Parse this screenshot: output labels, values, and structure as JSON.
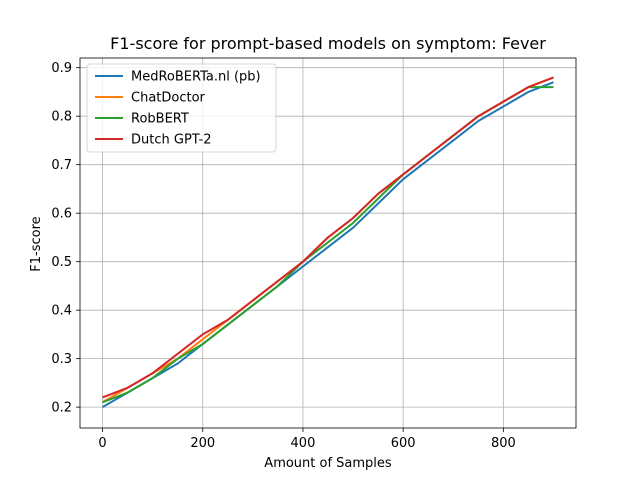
{
  "chart_data": {
    "type": "line",
    "title": "F1-score for prompt-based models on symptom: Fever",
    "xlabel": "Amount of Samples",
    "ylabel": "F1-score",
    "xlim": [
      -45,
      945
    ],
    "ylim": [
      0.157,
      0.92
    ],
    "x_ticks": [
      0,
      200,
      400,
      600,
      800
    ],
    "y_ticks": [
      0.2,
      0.3,
      0.4,
      0.5,
      0.6,
      0.7,
      0.8,
      0.9
    ],
    "grid": true,
    "legend": "upper-left",
    "series": [
      {
        "name": "MedRoBERTa.nl (pb)",
        "color": "#1f77b4",
        "x": [
          0,
          50,
          100,
          150,
          200,
          250,
          300,
          350,
          400,
          450,
          500,
          550,
          600,
          650,
          700,
          750,
          800,
          850,
          900
        ],
        "y": [
          0.2,
          0.23,
          0.26,
          0.29,
          0.33,
          0.37,
          0.41,
          0.45,
          0.49,
          0.53,
          0.57,
          0.62,
          0.67,
          0.71,
          0.75,
          0.79,
          0.82,
          0.85,
          0.87
        ]
      },
      {
        "name": "ChatDoctor",
        "color": "#ff7f0e",
        "x": [
          0,
          50,
          100,
          150,
          200,
          250,
          300,
          350,
          400,
          450,
          500,
          550,
          600,
          650,
          700,
          750,
          800,
          850,
          900
        ],
        "y": [
          0.21,
          0.24,
          0.27,
          0.3,
          0.34,
          0.38,
          0.42,
          0.46,
          0.5,
          0.55,
          0.59,
          0.64,
          0.68,
          0.72,
          0.76,
          0.8,
          0.83,
          0.86,
          0.88
        ]
      },
      {
        "name": "RobBERT",
        "color": "#2ca02c",
        "x": [
          0,
          50,
          100,
          150,
          200,
          250,
          300,
          350,
          400,
          450,
          500,
          550,
          600,
          650,
          700,
          750,
          800,
          850,
          900
        ],
        "y": [
          0.21,
          0.23,
          0.26,
          0.3,
          0.33,
          0.37,
          0.41,
          0.45,
          0.5,
          0.54,
          0.58,
          0.63,
          0.68,
          0.72,
          0.76,
          0.8,
          0.83,
          0.86,
          0.86
        ]
      },
      {
        "name": "Dutch GPT-2",
        "color": "#d62728",
        "x": [
          0,
          50,
          100,
          150,
          200,
          250,
          300,
          350,
          400,
          450,
          500,
          550,
          600,
          650,
          700,
          750,
          800,
          850,
          900
        ],
        "y": [
          0.22,
          0.24,
          0.27,
          0.31,
          0.35,
          0.38,
          0.42,
          0.46,
          0.5,
          0.55,
          0.59,
          0.64,
          0.68,
          0.72,
          0.76,
          0.8,
          0.83,
          0.86,
          0.88
        ]
      }
    ]
  }
}
